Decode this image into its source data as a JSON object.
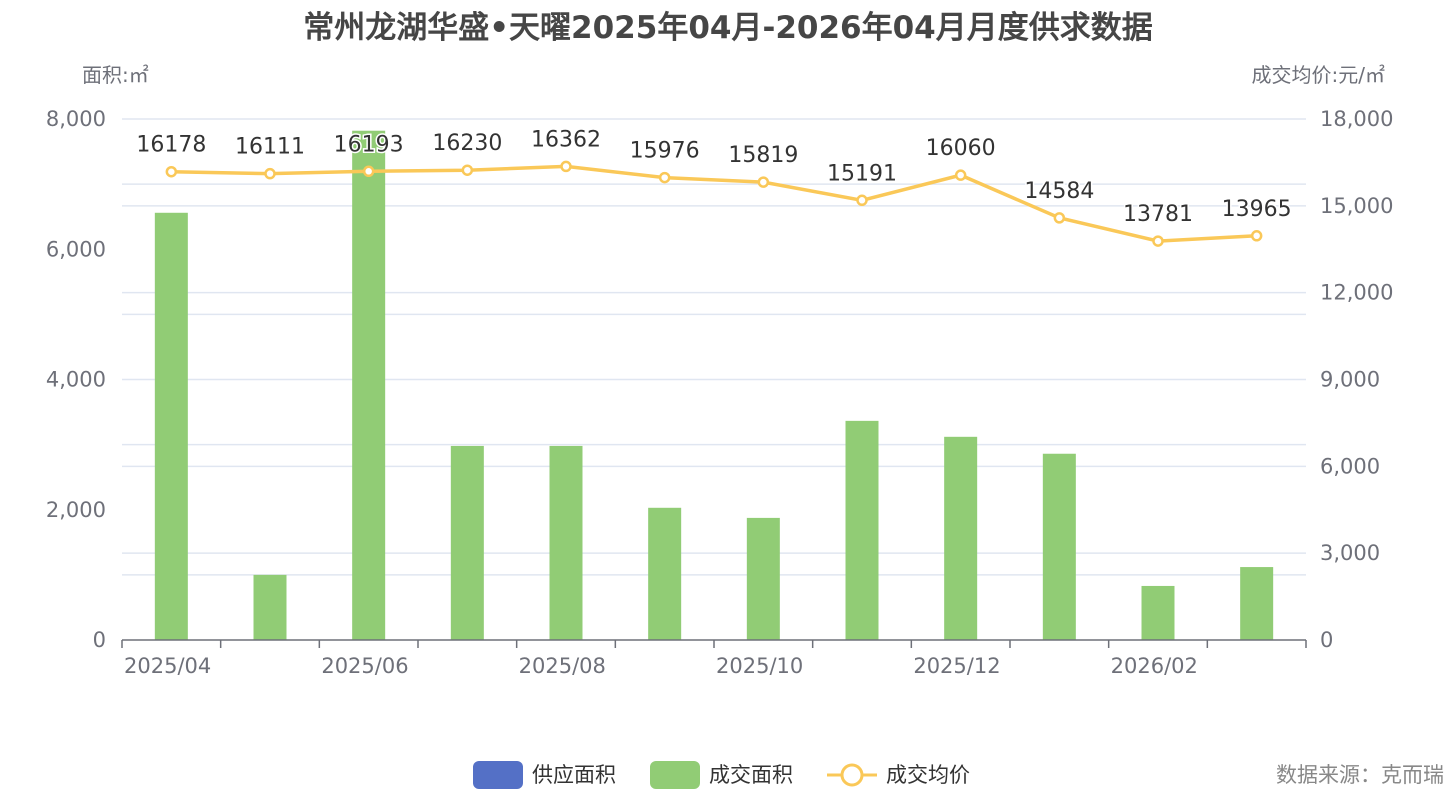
{
  "chart_data": {
    "type": "bar",
    "title": "常州龙湖华盛•天曜2025年04月-2026年04月月度供求数据",
    "ylabel_left": "面积:㎡",
    "ylabel_right": "成交均价:元/㎡",
    "categories": [
      "2025/04",
      "2025/05",
      "2025/06",
      "2025/07",
      "2025/08",
      "2025/09",
      "2025/10",
      "2025/11",
      "2025/12",
      "2026/01",
      "2026/02",
      "2026/03"
    ],
    "x_tick_labels": [
      "2025/04",
      "2025/06",
      "2025/08",
      "2025/10",
      "2025/12",
      "2026/02"
    ],
    "ylim_left": [
      0,
      8000
    ],
    "ylim_right": [
      0,
      18000
    ],
    "yticks_left": [
      "0",
      "2,000",
      "4,000",
      "6,000",
      "8,000"
    ],
    "yticks_right": [
      "0",
      "3,000",
      "6,000",
      "9,000",
      "12,000",
      "15,000",
      "18,000"
    ],
    "grid": true,
    "legend_position": "bottom",
    "series": [
      {
        "name": "供应面积",
        "type": "bar",
        "axis": "left",
        "color": "#5470c6",
        "values": [
          0,
          0,
          0,
          0,
          0,
          0,
          0,
          0,
          0,
          0,
          0,
          0
        ]
      },
      {
        "name": "成交面积",
        "type": "bar",
        "axis": "left",
        "color": "#91cc75",
        "values": [
          6560,
          1000,
          7820,
          2980,
          2980,
          2030,
          1875,
          3365,
          3120,
          2860,
          830,
          1120
        ]
      },
      {
        "name": "成交均价",
        "type": "line",
        "axis": "right",
        "color": "#fac858",
        "values": [
          16178,
          16111,
          16193,
          16230,
          16362,
          15976,
          15819,
          15191,
          16060,
          14584,
          13781,
          13965
        ]
      }
    ],
    "source": "数据来源：克而瑞"
  }
}
